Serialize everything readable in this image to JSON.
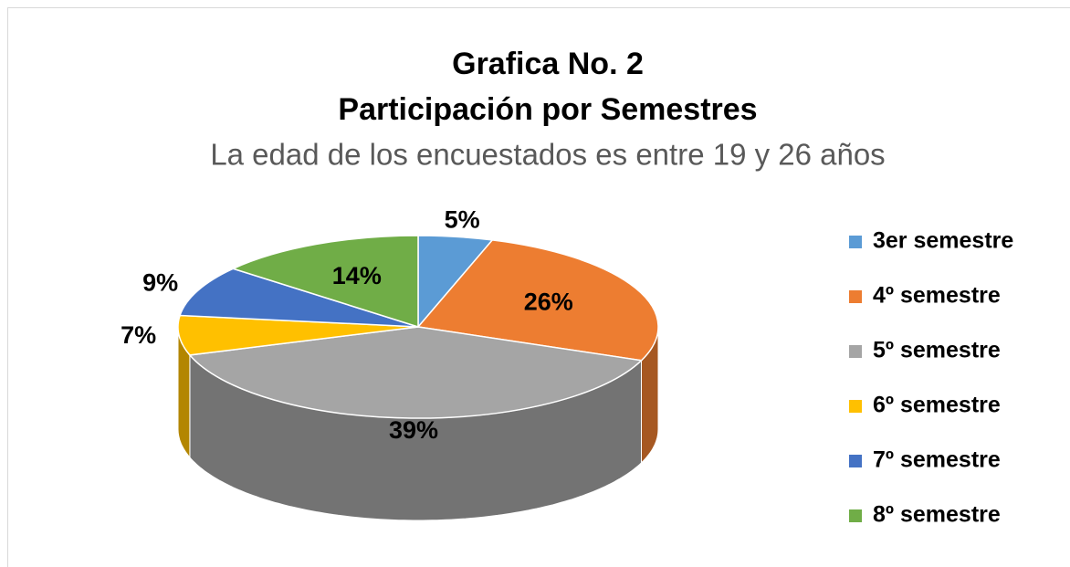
{
  "chart_data": {
    "type": "pie",
    "title": [
      "Grafica No. 2",
      "Participación por Semestres"
    ],
    "subtitle": "La edad de los encuestados es entre 19 y 26 años",
    "categories": [
      "3er semestre",
      "4º semestre",
      "5º semestre",
      "6º semestre",
      "7º semestre",
      "8º semestre"
    ],
    "values": [
      5,
      26,
      39,
      7,
      9,
      14
    ],
    "value_labels": [
      "5%",
      "26%",
      "39%",
      "7%",
      "9%",
      "14%"
    ],
    "colors": [
      "#5b9bd5",
      "#ed7d31",
      "#a5a5a5",
      "#ffc000",
      "#4472c4",
      "#70ad47"
    ],
    "legend": "right"
  }
}
